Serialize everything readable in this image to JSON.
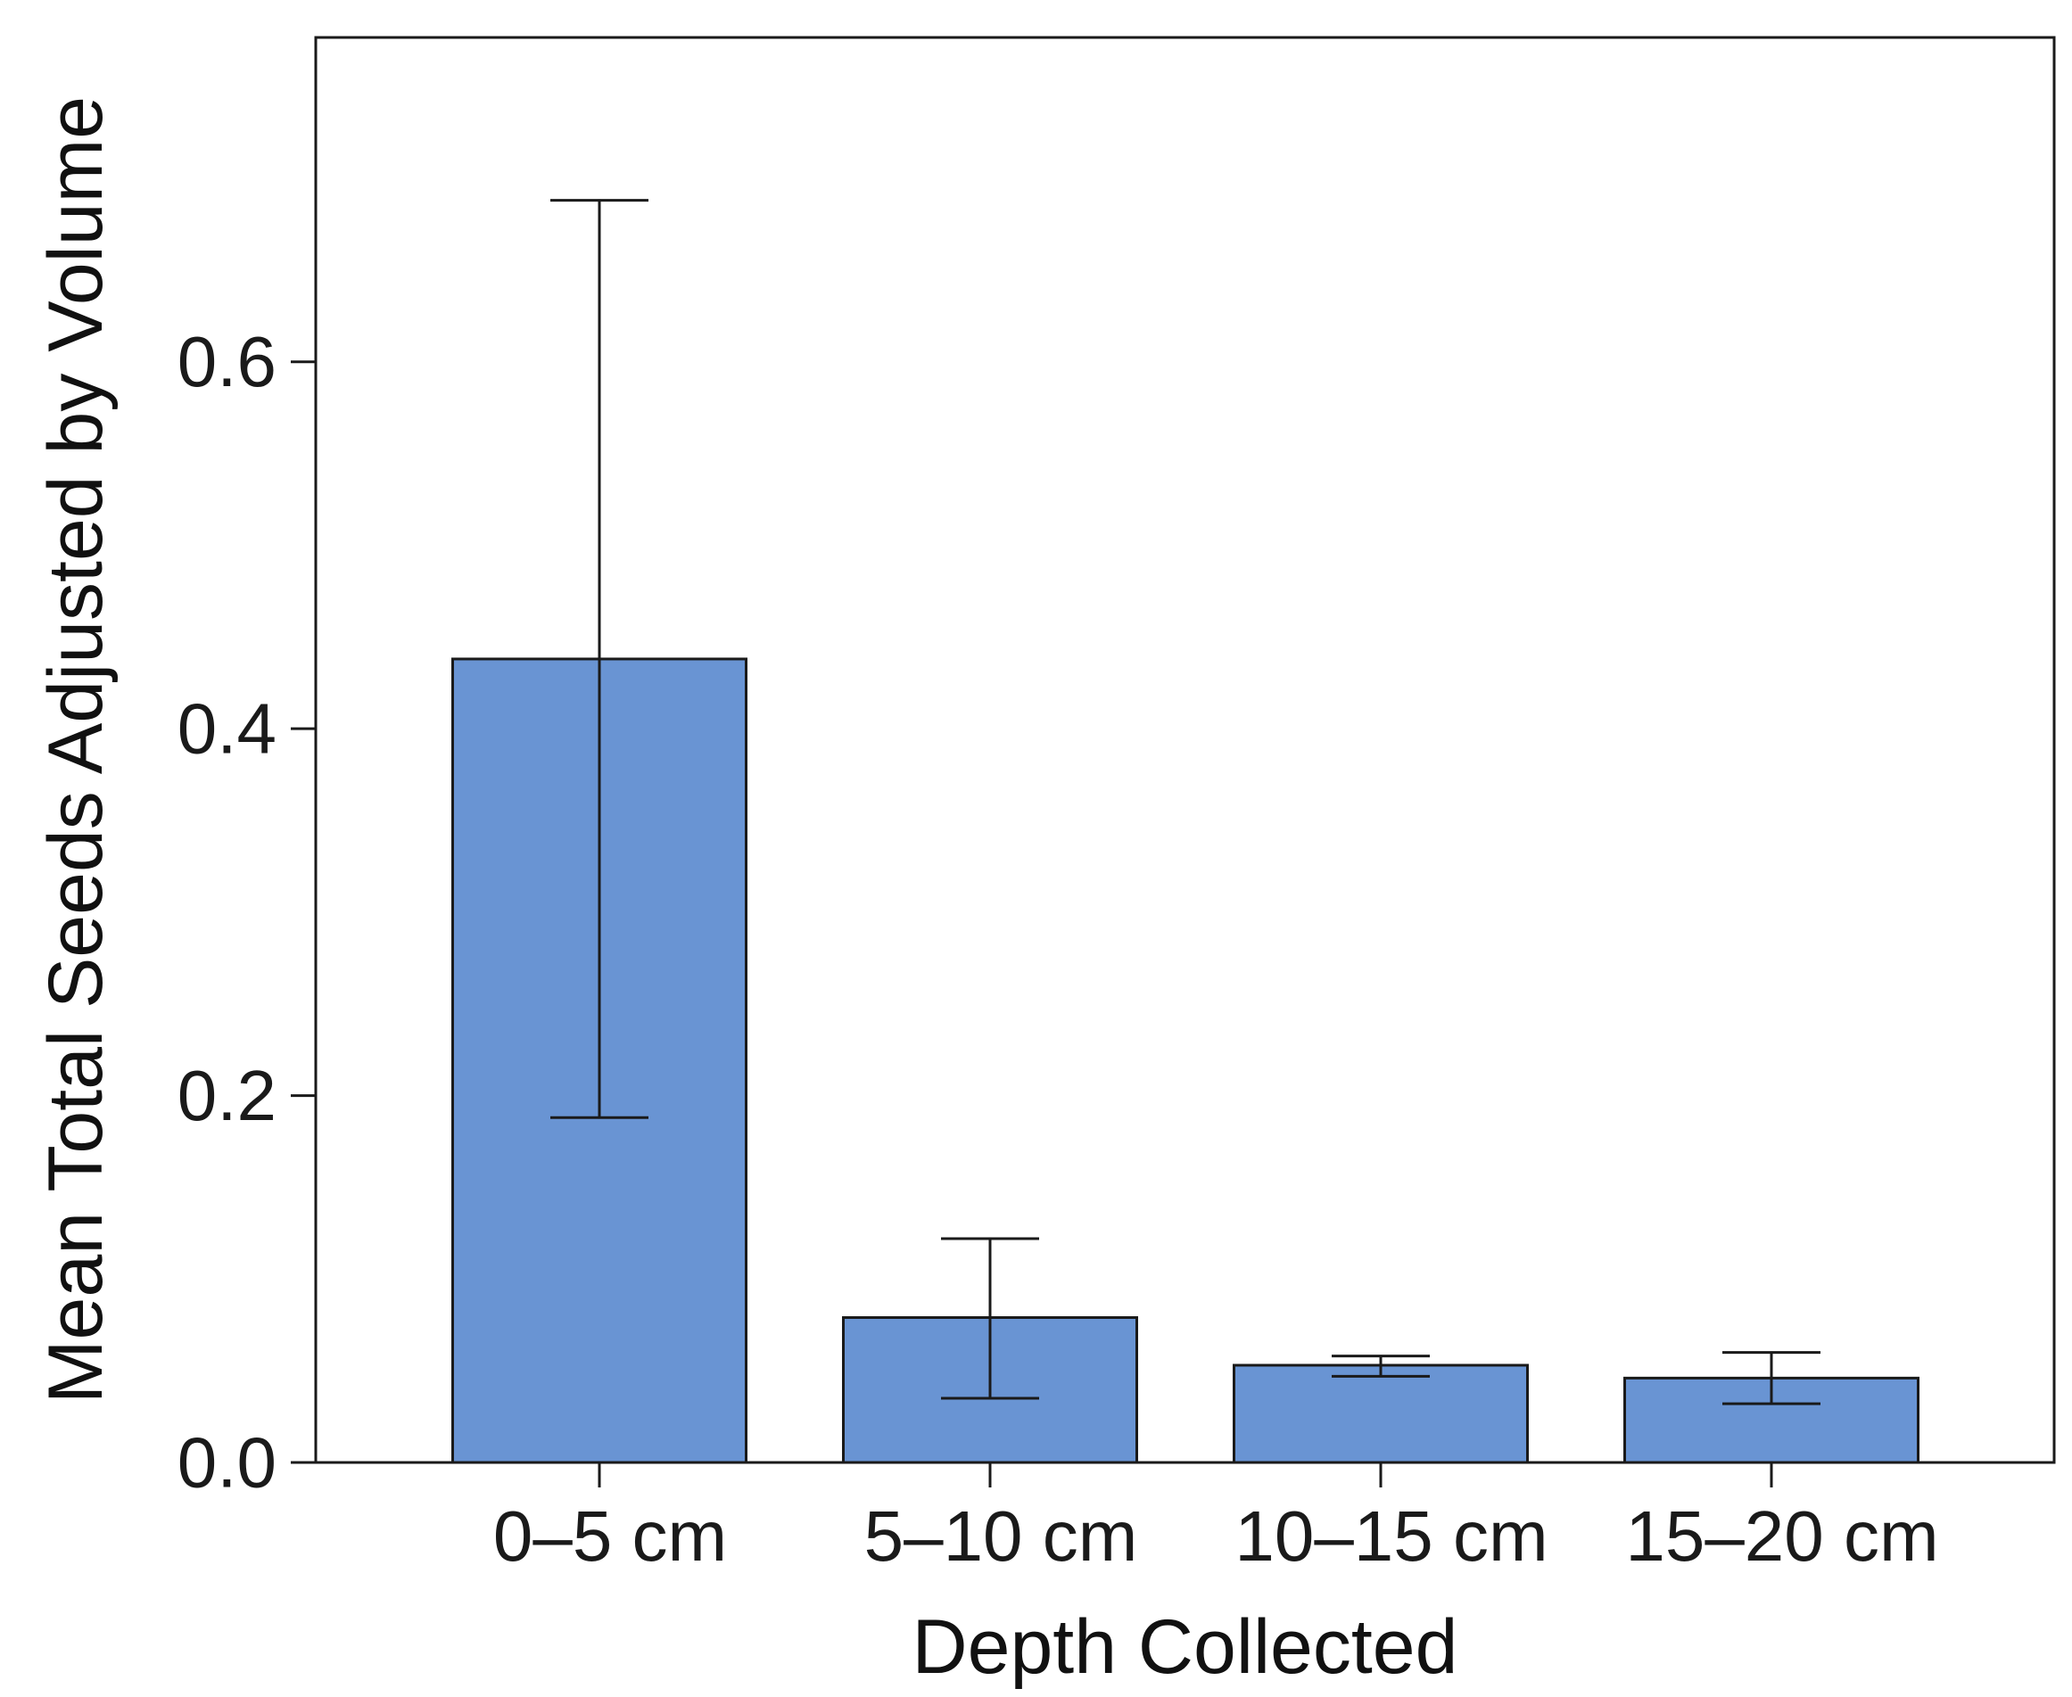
{
  "chart_data": {
    "type": "bar",
    "title": "",
    "xlabel": "Depth Collected",
    "ylabel": "Mean Total Seeds Adjusted by Volume",
    "categories": [
      "0–5 cm",
      "5–10 cm",
      "10–15 cm",
      "15–20 cm"
    ],
    "values": [
      0.438,
      0.079,
      0.053,
      0.046
    ],
    "error_bars": [
      {
        "lower": 0.188,
        "upper": 0.688
      },
      {
        "lower": 0.035,
        "upper": 0.122
      },
      {
        "lower": 0.047,
        "upper": 0.058
      },
      {
        "lower": 0.032,
        "upper": 0.06
      }
    ],
    "ylim": [
      0.0,
      0.7768
    ],
    "yticks": [
      0.0,
      0.2,
      0.4,
      0.6
    ],
    "ytick_labels": [
      "0.0",
      "0.2",
      "0.4",
      "0.6"
    ],
    "grid": false,
    "legend": "none",
    "bar_color": "#6994d3",
    "bar_edge_color": "#1a1a1a"
  }
}
